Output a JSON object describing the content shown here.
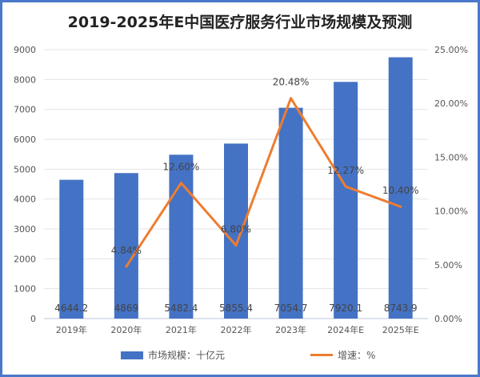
{
  "chart_data": {
    "type": "bar+line",
    "title": "2019-2025年E中国医疗服务行业市场规模及预测",
    "categories": [
      "2019年",
      "2020年",
      "2021年",
      "2022年",
      "2023年",
      "2024年E",
      "2025年E"
    ],
    "series": [
      {
        "name": "市场规模：十亿元",
        "type": "bar",
        "axis": "left",
        "values": [
          4644.2,
          4869,
          5482.4,
          5855.4,
          7054.7,
          7920.1,
          8743.9
        ],
        "labels": [
          "4644.2",
          "4869",
          "5482.4",
          "5855.4",
          "7054.7",
          "7920.1",
          "8743.9"
        ],
        "color": "#4472C4"
      },
      {
        "name": "增速：%",
        "type": "line",
        "axis": "right",
        "values": [
          null,
          4.84,
          12.6,
          6.8,
          20.48,
          12.27,
          10.4
        ],
        "labels": [
          "",
          "4.84%",
          "12.60%",
          "6.80%",
          "20.48%",
          "12.27%",
          "10.40%"
        ],
        "color": "#ED7D31"
      }
    ],
    "y_left": {
      "min": 0,
      "max": 9000,
      "ticks": [
        "0",
        "1000",
        "2000",
        "3000",
        "4000",
        "5000",
        "6000",
        "7000",
        "8000",
        "9000"
      ]
    },
    "y_right": {
      "min": 0,
      "max": 25,
      "ticks": [
        "0.00%",
        "5.00%",
        "10.00%",
        "15.00%",
        "20.00%",
        "25.00%"
      ]
    },
    "grid": true,
    "legend_position": "bottom"
  }
}
